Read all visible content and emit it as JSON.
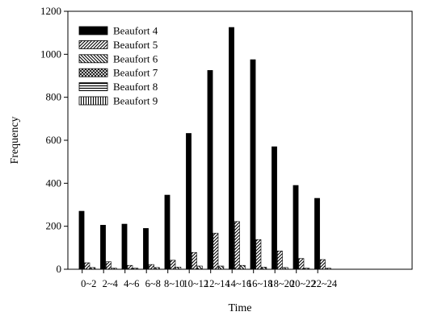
{
  "chart_data": {
    "type": "bar",
    "xlabel": "Time",
    "ylabel": "Frequency",
    "ylim": [
      0,
      1200
    ],
    "yticks": [
      0,
      200,
      400,
      600,
      800,
      1000,
      1200
    ],
    "grid": false,
    "legend_position": "top-left",
    "categories": [
      "0~2",
      "2~4",
      "4~6",
      "6~8",
      "8~10",
      "10~12",
      "12~14",
      "14~16",
      "16~18",
      "18~20",
      "20~22",
      "22~24"
    ],
    "series": [
      {
        "name": "Beaufort 4",
        "pattern": "solid",
        "values": [
          270,
          205,
          210,
          190,
          345,
          632,
          925,
          1125,
          975,
          570,
          390,
          330
        ]
      },
      {
        "name": "Beaufort 5",
        "pattern": "diag-right",
        "values": [
          30,
          35,
          18,
          22,
          42,
          78,
          168,
          222,
          138,
          85,
          50,
          45
        ]
      },
      {
        "name": "Beaufort 6",
        "pattern": "diag-left",
        "values": [
          8,
          5,
          5,
          8,
          10,
          15,
          15,
          18,
          10,
          8,
          5,
          5
        ]
      },
      {
        "name": "Beaufort 7",
        "pattern": "crosshatch",
        "values": [
          0,
          0,
          0,
          0,
          0,
          0,
          0,
          0,
          0,
          0,
          0,
          0
        ]
      },
      {
        "name": "Beaufort 8",
        "pattern": "horizontal",
        "values": [
          0,
          0,
          0,
          0,
          0,
          0,
          0,
          0,
          0,
          0,
          0,
          0
        ]
      },
      {
        "name": "Beaufort 9",
        "pattern": "vertical",
        "values": [
          0,
          0,
          0,
          0,
          0,
          0,
          0,
          0,
          0,
          0,
          0,
          0
        ]
      }
    ]
  }
}
